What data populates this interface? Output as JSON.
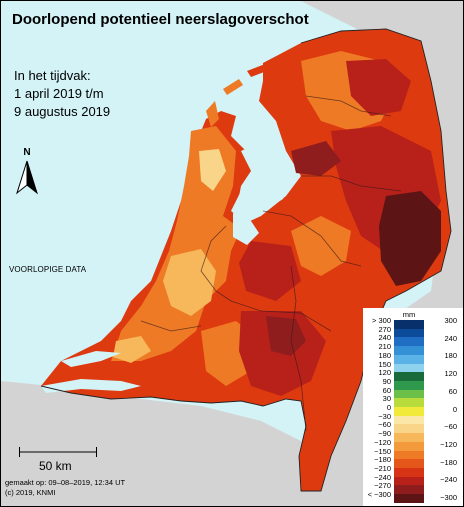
{
  "title": "Doorlopend potentieel neerslagoverschot",
  "period": {
    "line1": "In het tijdvak:",
    "line2": "1 april 2019 t/m",
    "line3": "9 augustus 2019"
  },
  "preliminary_label": "VOORLOPIGE DATA",
  "north_label": "N",
  "scale_label": "50 km",
  "made_on": "gemaakt op: 09–08–2019, 12:34 UT",
  "copyright": "(c) 2019, KNMI",
  "colors": {
    "sea": "#d3f3f7",
    "foreign_land": "#d3d3d3",
    "dominant_map_color": "#de3a10"
  },
  "legend": {
    "unit": "mm",
    "left_ticks": [
      "> 300",
      "270",
      "240",
      "210",
      "180",
      "150",
      "120",
      "90",
      "60",
      "30",
      "0",
      "−30",
      "−60",
      "−90",
      "−120",
      "−150",
      "−180",
      "−210",
      "−240",
      "−270",
      "< −300"
    ],
    "right_ticks": [
      "300",
      "240",
      "180",
      "120",
      "60",
      "0",
      "−60",
      "−120",
      "−180",
      "−240",
      "−300"
    ],
    "swatches": [
      "#08306b",
      "#0c4a9a",
      "#1f6ec4",
      "#3591d6",
      "#5ab2e6",
      "#8fd2ee",
      "#1a6b3a",
      "#2f9a4e",
      "#6cc04a",
      "#b8dc3c",
      "#f2ea3a",
      "#fbe7a8",
      "#f9d58a",
      "#f6b85a",
      "#f39a3c",
      "#ee7a26",
      "#e5561a",
      "#d63414",
      "#b8201a",
      "#8f1d1d",
      "#5c1414"
    ]
  }
}
